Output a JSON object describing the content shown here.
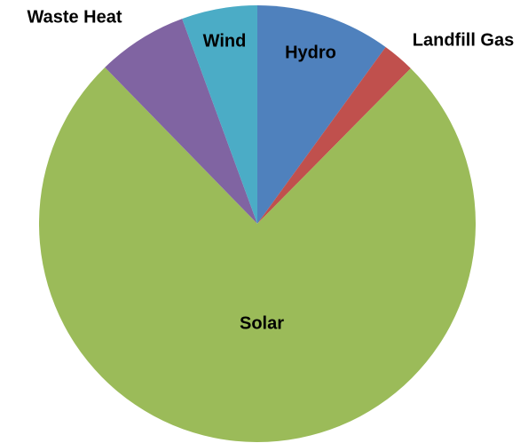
{
  "chart_data": {
    "type": "pie",
    "categories": [
      "Hydro",
      "Landfill Gas",
      "Solar",
      "Waste Heat",
      "Wind"
    ],
    "values": [
      10,
      2.4,
      75.3,
      6.7,
      5.6
    ],
    "colors": [
      "#4f81bd",
      "#c0504d",
      "#9bbb59",
      "#8064a2",
      "#4bacc6"
    ]
  }
}
